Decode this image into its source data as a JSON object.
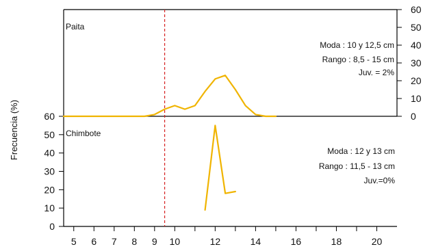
{
  "chart_data": [
    {
      "type": "line",
      "panel_label": "Paita",
      "annotations": [
        "Moda : 10 y 12,5 cm",
        "Rango : 8,5 - 15 cm",
        "Juv. = 2%"
      ],
      "ylabel": "Frecuencia (%)",
      "xlabel": "",
      "ylim": [
        0,
        60
      ],
      "xlim": [
        4.5,
        21
      ],
      "yticks": [
        0,
        10,
        20,
        30,
        40,
        50,
        60
      ],
      "xticks": [
        5,
        6,
        7,
        8,
        9,
        10,
        12,
        14,
        16,
        18,
        20
      ],
      "reference_line_x": 9.5,
      "series": [
        {
          "x": [
            4.5,
            8.5,
            9,
            9.5,
            10,
            10.5,
            11,
            11.5,
            12,
            12.5,
            13,
            13.5,
            14,
            14.5,
            15
          ],
          "values": [
            0,
            0,
            1,
            4,
            6,
            4,
            6,
            14,
            21,
            23,
            15,
            6,
            1,
            0,
            0
          ]
        }
      ]
    },
    {
      "type": "line",
      "panel_label": "Chimbote",
      "annotations": [
        "Moda : 12 y 13 cm",
        "Rango : 11,5 - 13 cm",
        "Juv.=0%"
      ],
      "ylim": [
        0,
        60
      ],
      "xlim": [
        4.5,
        21
      ],
      "yticks": [
        0,
        10,
        20,
        30,
        40,
        50,
        60
      ],
      "xticks": [
        5,
        6,
        7,
        8,
        9,
        10,
        12,
        14,
        16,
        18,
        20
      ],
      "xtick_labels": [
        "5",
        "6",
        "7",
        "8",
        "9",
        "10",
        "12",
        "14",
        "16",
        "18",
        "20"
      ],
      "reference_line_x": 9.5,
      "series": [
        {
          "x": [
            11.5,
            12,
            12.5,
            13
          ],
          "values": [
            9,
            55,
            18,
            19
          ]
        }
      ]
    }
  ]
}
